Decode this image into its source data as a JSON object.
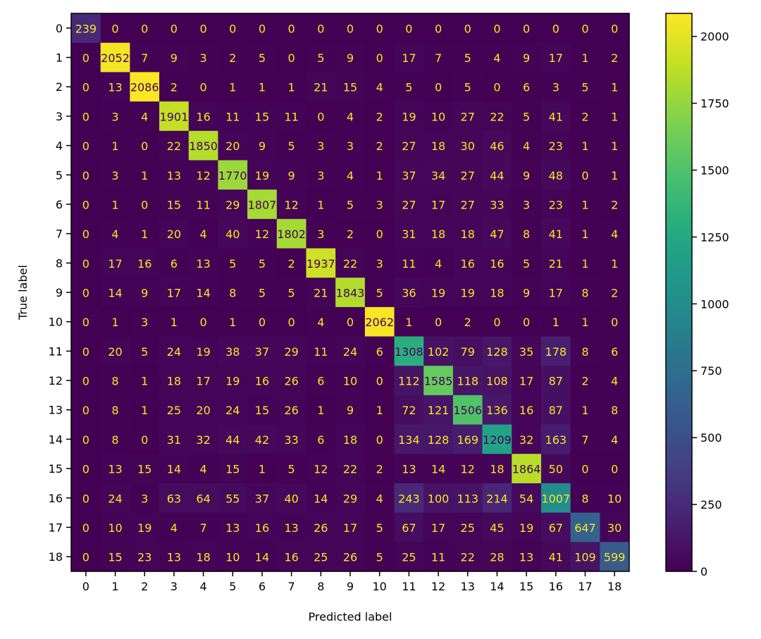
{
  "chart_data": {
    "type": "heatmap",
    "title": "",
    "xlabel": "Predicted label",
    "ylabel": "True label",
    "x_categories": [
      "0",
      "1",
      "2",
      "3",
      "4",
      "5",
      "6",
      "7",
      "8",
      "9",
      "10",
      "11",
      "12",
      "13",
      "14",
      "15",
      "16",
      "17",
      "18"
    ],
    "y_categories": [
      "0",
      "1",
      "2",
      "3",
      "4",
      "5",
      "6",
      "7",
      "8",
      "9",
      "10",
      "11",
      "12",
      "13",
      "14",
      "15",
      "16",
      "17",
      "18"
    ],
    "matrix": [
      [
        239,
        0,
        0,
        0,
        0,
        0,
        0,
        0,
        0,
        0,
        0,
        0,
        0,
        0,
        0,
        0,
        0,
        0,
        0
      ],
      [
        0,
        2052,
        7,
        9,
        3,
        2,
        5,
        0,
        5,
        9,
        0,
        17,
        7,
        5,
        4,
        9,
        17,
        1,
        2
      ],
      [
        0,
        13,
        2086,
        2,
        0,
        1,
        1,
        1,
        21,
        15,
        4,
        5,
        0,
        5,
        0,
        6,
        3,
        5,
        1
      ],
      [
        0,
        3,
        4,
        1901,
        16,
        11,
        15,
        11,
        0,
        4,
        2,
        19,
        10,
        27,
        22,
        5,
        41,
        2,
        1
      ],
      [
        0,
        1,
        0,
        22,
        1850,
        20,
        9,
        5,
        3,
        3,
        2,
        27,
        18,
        30,
        46,
        4,
        23,
        1,
        1
      ],
      [
        0,
        3,
        1,
        13,
        12,
        1770,
        19,
        9,
        3,
        4,
        1,
        37,
        34,
        27,
        44,
        9,
        48,
        0,
        1
      ],
      [
        0,
        1,
        0,
        15,
        11,
        29,
        1807,
        12,
        1,
        5,
        3,
        27,
        17,
        27,
        33,
        3,
        23,
        1,
        2
      ],
      [
        0,
        4,
        1,
        20,
        4,
        40,
        12,
        1802,
        3,
        2,
        0,
        31,
        18,
        18,
        47,
        8,
        41,
        1,
        4
      ],
      [
        0,
        17,
        16,
        6,
        13,
        5,
        5,
        2,
        1937,
        22,
        3,
        11,
        4,
        16,
        16,
        5,
        21,
        1,
        1
      ],
      [
        0,
        14,
        9,
        17,
        14,
        8,
        5,
        5,
        21,
        1843,
        5,
        36,
        19,
        19,
        18,
        9,
        17,
        8,
        2
      ],
      [
        0,
        1,
        3,
        1,
        0,
        1,
        0,
        0,
        4,
        0,
        2062,
        1,
        0,
        2,
        0,
        0,
        1,
        1,
        0
      ],
      [
        0,
        20,
        5,
        24,
        19,
        38,
        37,
        29,
        11,
        24,
        6,
        1308,
        102,
        79,
        128,
        35,
        178,
        8,
        6
      ],
      [
        0,
        8,
        1,
        18,
        17,
        19,
        16,
        26,
        6,
        10,
        0,
        112,
        1585,
        118,
        108,
        17,
        87,
        2,
        4
      ],
      [
        0,
        8,
        1,
        25,
        20,
        24,
        15,
        26,
        1,
        9,
        1,
        72,
        121,
        1506,
        136,
        16,
        87,
        1,
        8
      ],
      [
        0,
        8,
        0,
        31,
        32,
        44,
        42,
        33,
        6,
        18,
        0,
        134,
        128,
        169,
        1209,
        32,
        163,
        7,
        4
      ],
      [
        0,
        13,
        15,
        14,
        4,
        15,
        1,
        5,
        12,
        22,
        2,
        13,
        14,
        12,
        18,
        1864,
        50,
        0,
        0
      ],
      [
        0,
        24,
        3,
        63,
        64,
        55,
        37,
        40,
        14,
        29,
        4,
        243,
        100,
        113,
        214,
        54,
        1007,
        8,
        10
      ],
      [
        0,
        10,
        19,
        4,
        7,
        13,
        16,
        13,
        26,
        17,
        5,
        67,
        17,
        25,
        45,
        19,
        67,
        647,
        30
      ],
      [
        0,
        15,
        23,
        13,
        18,
        10,
        14,
        16,
        25,
        26,
        5,
        25,
        11,
        22,
        28,
        13,
        41,
        109,
        599
      ]
    ],
    "colormap": "viridis",
    "vmin": 0,
    "vmax": 2086,
    "colorbar_ticks": [
      0,
      250,
      500,
      750,
      1000,
      1250,
      1500,
      1750,
      2000
    ],
    "grid": false,
    "text_color_light": "#f9e721",
    "text_color_dark": "#440154"
  }
}
